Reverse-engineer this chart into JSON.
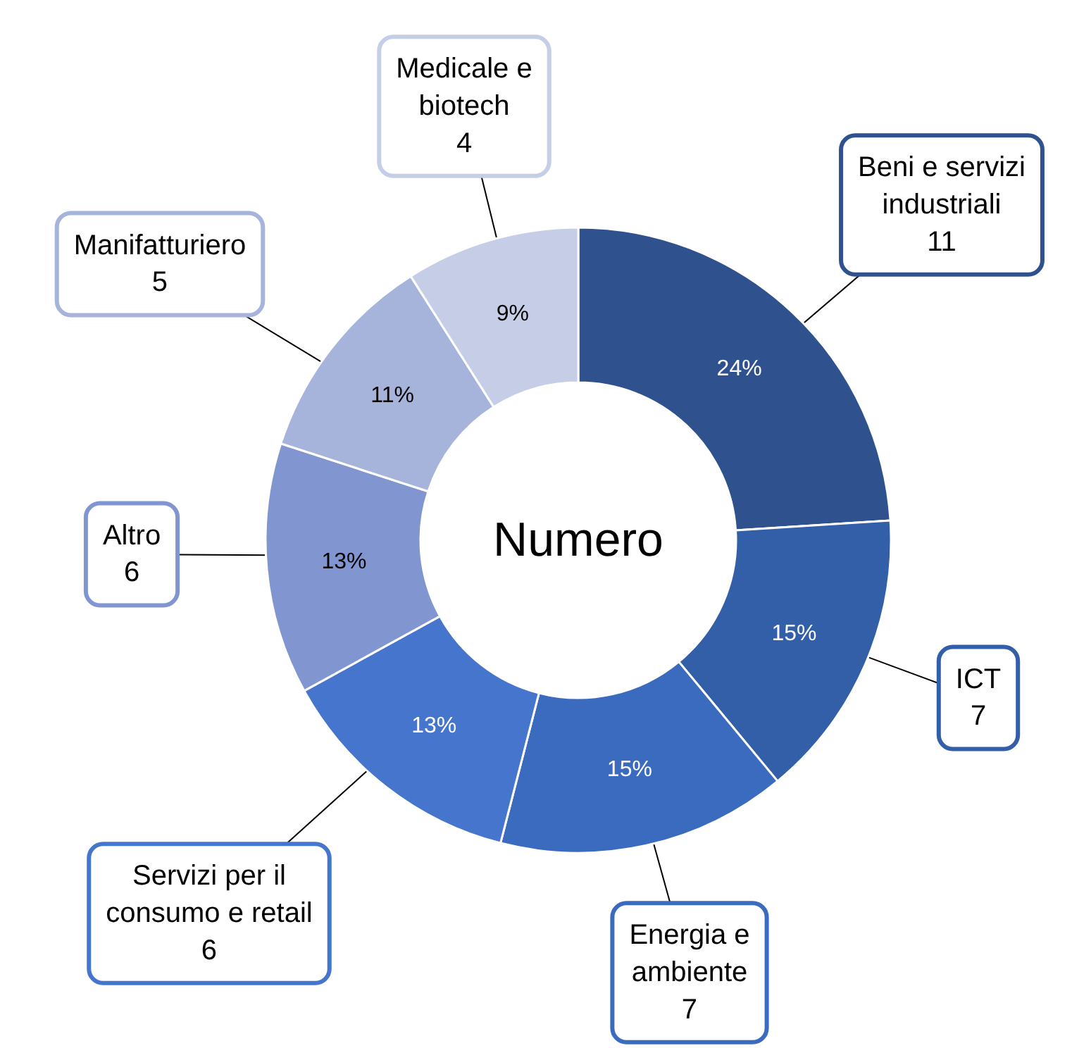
{
  "chart_data": {
    "type": "donut",
    "title": "Numero",
    "categories": [
      "Beni e servizi industriali",
      "ICT",
      "Energia e ambiente",
      "Servizi per il consumo e retail",
      "Altro",
      "Manifatturiero",
      "Medicale e biotech"
    ],
    "values": [
      24,
      15,
      15,
      13,
      13,
      11,
      9
    ],
    "value_labels": [
      "24%",
      "15%",
      "15%",
      "13%",
      "13%",
      "11%",
      "9%"
    ],
    "colors": [
      "#2f528f",
      "#335fa9",
      "#3a6bbf",
      "#4575cc",
      "#8196d1",
      "#a6b3db",
      "#c5cde7"
    ],
    "annotations": [
      {
        "text": "11",
        "x": "Beni e servizi industriali"
      },
      {
        "text": "7",
        "x": "ICT"
      },
      {
        "text": "7",
        "x": "Energia e ambiente"
      },
      {
        "text": "6",
        "x": "Servizi per il consumo e retail"
      },
      {
        "text": "6",
        "x": "Altro"
      },
      {
        "text": "5",
        "x": "Manifatturiero"
      },
      {
        "text": "4",
        "x": "Medicale e biotech"
      }
    ]
  }
}
